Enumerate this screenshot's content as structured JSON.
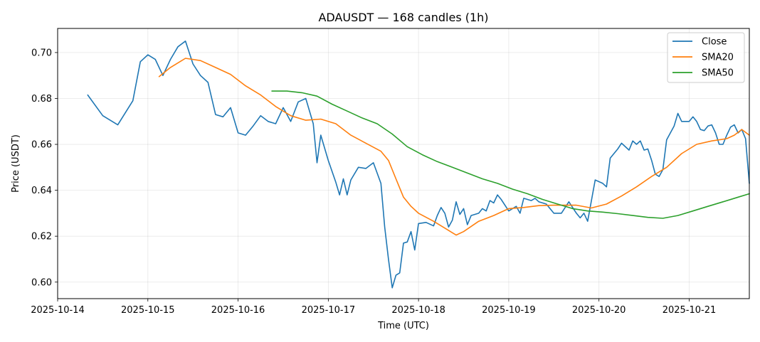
{
  "chart_data": {
    "type": "line",
    "title": "ADAUSDT — 168 candles (1h)",
    "xlabel": "Time (UTC)",
    "ylabel": "Price (USDT)",
    "x_ticks": [
      "2025-10-14",
      "2025-10-15",
      "2025-10-16",
      "2025-10-17",
      "2025-10-18",
      "2025-10-19",
      "2025-10-20",
      "2025-10-21"
    ],
    "y_ticks": [
      "0.60",
      "0.62",
      "0.64",
      "0.66",
      "0.68",
      "0.70"
    ],
    "x_range": [
      "2025-10-14 00:00",
      "2025-10-21 16:00"
    ],
    "ylim": [
      0.5928,
      0.7105
    ],
    "grid": true,
    "legend_position": "top-right",
    "series": [
      {
        "name": "Close",
        "color": "#1f77b4",
        "points": [
          [
            "2025-10-14 08:00",
            0.6815
          ],
          [
            "2025-10-14 12:00",
            0.6725
          ],
          [
            "2025-10-14 16:00",
            0.6685
          ],
          [
            "2025-10-14 20:00",
            0.679
          ],
          [
            "2025-10-14 22:00",
            0.696
          ],
          [
            "2025-10-15 00:00",
            0.699
          ],
          [
            "2025-10-15 02:00",
            0.697
          ],
          [
            "2025-10-15 04:00",
            0.69
          ],
          [
            "2025-10-15 06:00",
            0.697
          ],
          [
            "2025-10-15 08:00",
            0.7025
          ],
          [
            "2025-10-15 10:00",
            0.705
          ],
          [
            "2025-10-15 12:00",
            0.695
          ],
          [
            "2025-10-15 14:00",
            0.69
          ],
          [
            "2025-10-15 16:00",
            0.687
          ],
          [
            "2025-10-15 18:00",
            0.673
          ],
          [
            "2025-10-15 20:00",
            0.672
          ],
          [
            "2025-10-15 22:00",
            0.676
          ],
          [
            "2025-10-16 00:00",
            0.665
          ],
          [
            "2025-10-16 02:00",
            0.664
          ],
          [
            "2025-10-16 04:00",
            0.668
          ],
          [
            "2025-10-16 06:00",
            0.6725
          ],
          [
            "2025-10-16 08:00",
            0.67
          ],
          [
            "2025-10-16 10:00",
            0.669
          ],
          [
            "2025-10-16 12:00",
            0.676
          ],
          [
            "2025-10-16 14:00",
            0.67
          ],
          [
            "2025-10-16 16:00",
            0.6785
          ],
          [
            "2025-10-16 18:00",
            0.68
          ],
          [
            "2025-10-16 20:00",
            0.669
          ],
          [
            "2025-10-16 21:00",
            0.652
          ],
          [
            "2025-10-16 22:00",
            0.664
          ],
          [
            "2025-10-17 00:00",
            0.653
          ],
          [
            "2025-10-17 02:00",
            0.6435
          ],
          [
            "2025-10-17 03:00",
            0.638
          ],
          [
            "2025-10-17 04:00",
            0.645
          ],
          [
            "2025-10-17 05:00",
            0.638
          ],
          [
            "2025-10-17 06:00",
            0.6445
          ],
          [
            "2025-10-17 08:00",
            0.65
          ],
          [
            "2025-10-17 10:00",
            0.6495
          ],
          [
            "2025-10-17 12:00",
            0.652
          ],
          [
            "2025-10-17 14:00",
            0.643
          ],
          [
            "2025-10-17 15:00",
            0.624
          ],
          [
            "2025-10-17 16:00",
            0.61
          ],
          [
            "2025-10-17 17:00",
            0.5975
          ],
          [
            "2025-10-17 18:00",
            0.603
          ],
          [
            "2025-10-17 19:00",
            0.604
          ],
          [
            "2025-10-17 20:00",
            0.617
          ],
          [
            "2025-10-17 21:00",
            0.6175
          ],
          [
            "2025-10-17 22:00",
            0.622
          ],
          [
            "2025-10-17 23:00",
            0.614
          ],
          [
            "2025-10-18 00:00",
            0.6255
          ],
          [
            "2025-10-18 02:00",
            0.626
          ],
          [
            "2025-10-18 04:00",
            0.6245
          ],
          [
            "2025-10-18 05:00",
            0.629
          ],
          [
            "2025-10-18 06:00",
            0.6325
          ],
          [
            "2025-10-18 07:00",
            0.63
          ],
          [
            "2025-10-18 08:00",
            0.624
          ],
          [
            "2025-10-18 09:00",
            0.627
          ],
          [
            "2025-10-18 10:00",
            0.635
          ],
          [
            "2025-10-18 11:00",
            0.6295
          ],
          [
            "2025-10-18 12:00",
            0.632
          ],
          [
            "2025-10-18 13:00",
            0.625
          ],
          [
            "2025-10-18 14:00",
            0.629
          ],
          [
            "2025-10-18 16:00",
            0.63
          ],
          [
            "2025-10-18 17:00",
            0.632
          ],
          [
            "2025-10-18 18:00",
            0.631
          ],
          [
            "2025-10-18 19:00",
            0.6355
          ],
          [
            "2025-10-18 20:00",
            0.6345
          ],
          [
            "2025-10-18 21:00",
            0.638
          ],
          [
            "2025-10-18 22:00",
            0.636
          ],
          [
            "2025-10-19 00:00",
            0.631
          ],
          [
            "2025-10-19 02:00",
            0.633
          ],
          [
            "2025-10-19 03:00",
            0.63
          ],
          [
            "2025-10-19 04:00",
            0.6365
          ],
          [
            "2025-10-19 06:00",
            0.6355
          ],
          [
            "2025-10-19 07:00",
            0.6365
          ],
          [
            "2025-10-19 08:00",
            0.635
          ],
          [
            "2025-10-19 10:00",
            0.634
          ],
          [
            "2025-10-19 12:00",
            0.63
          ],
          [
            "2025-10-19 14:00",
            0.63
          ],
          [
            "2025-10-19 16:00",
            0.635
          ],
          [
            "2025-10-19 18:00",
            0.63
          ],
          [
            "2025-10-19 19:00",
            0.628
          ],
          [
            "2025-10-19 20:00",
            0.63
          ],
          [
            "2025-10-19 21:00",
            0.6265
          ],
          [
            "2025-10-19 22:00",
            0.6355
          ],
          [
            "2025-10-19 23:00",
            0.6445
          ],
          [
            "2025-10-20 01:00",
            0.643
          ],
          [
            "2025-10-20 02:00",
            0.6415
          ],
          [
            "2025-10-20 03:00",
            0.654
          ],
          [
            "2025-10-20 05:00",
            0.658
          ],
          [
            "2025-10-20 06:00",
            0.6605
          ],
          [
            "2025-10-20 08:00",
            0.6575
          ],
          [
            "2025-10-20 09:00",
            0.6615
          ],
          [
            "2025-10-20 10:00",
            0.66
          ],
          [
            "2025-10-20 11:00",
            0.6615
          ],
          [
            "2025-10-20 12:00",
            0.6575
          ],
          [
            "2025-10-20 13:00",
            0.658
          ],
          [
            "2025-10-20 14:00",
            0.653
          ],
          [
            "2025-10-20 15:00",
            0.647
          ],
          [
            "2025-10-20 16:00",
            0.646
          ],
          [
            "2025-10-20 17:00",
            0.649
          ],
          [
            "2025-10-20 18:00",
            0.662
          ],
          [
            "2025-10-20 20:00",
            0.668
          ],
          [
            "2025-10-20 21:00",
            0.6735
          ],
          [
            "2025-10-20 22:00",
            0.67
          ],
          [
            "2025-10-21 00:00",
            0.67
          ],
          [
            "2025-10-21 01:00",
            0.672
          ],
          [
            "2025-10-21 02:00",
            0.67
          ],
          [
            "2025-10-21 03:00",
            0.6665
          ],
          [
            "2025-10-21 04:00",
            0.666
          ],
          [
            "2025-10-21 05:00",
            0.668
          ],
          [
            "2025-10-21 06:00",
            0.6685
          ],
          [
            "2025-10-21 07:00",
            0.665
          ],
          [
            "2025-10-21 08:00",
            0.66
          ],
          [
            "2025-10-21 09:00",
            0.66
          ],
          [
            "2025-10-21 10:00",
            0.664
          ],
          [
            "2025-10-21 11:00",
            0.6675
          ],
          [
            "2025-10-21 12:00",
            0.6685
          ],
          [
            "2025-10-21 13:00",
            0.665
          ],
          [
            "2025-10-21 14:00",
            0.6665
          ],
          [
            "2025-10-21 15:00",
            0.6625
          ],
          [
            "2025-10-21 16:00",
            0.643
          ]
        ]
      },
      {
        "name": "SMA20",
        "color": "#ff7f0e",
        "points": [
          [
            "2025-10-15 03:00",
            0.6895
          ],
          [
            "2025-10-15 06:00",
            0.6935
          ],
          [
            "2025-10-15 10:00",
            0.6975
          ],
          [
            "2025-10-15 14:00",
            0.6965
          ],
          [
            "2025-10-15 18:00",
            0.6935
          ],
          [
            "2025-10-15 22:00",
            0.6905
          ],
          [
            "2025-10-16 02:00",
            0.6855
          ],
          [
            "2025-10-16 06:00",
            0.6815
          ],
          [
            "2025-10-16 10:00",
            0.6765
          ],
          [
            "2025-10-16 14:00",
            0.6725
          ],
          [
            "2025-10-16 18:00",
            0.6705
          ],
          [
            "2025-10-16 22:00",
            0.671
          ],
          [
            "2025-10-17 02:00",
            0.669
          ],
          [
            "2025-10-17 06:00",
            0.664
          ],
          [
            "2025-10-17 10:00",
            0.6605
          ],
          [
            "2025-10-17 14:00",
            0.657
          ],
          [
            "2025-10-17 16:00",
            0.653
          ],
          [
            "2025-10-17 18:00",
            0.645
          ],
          [
            "2025-10-17 20:00",
            0.637
          ],
          [
            "2025-10-17 22:00",
            0.633
          ],
          [
            "2025-10-18 00:00",
            0.63
          ],
          [
            "2025-10-18 04:00",
            0.6265
          ],
          [
            "2025-10-18 08:00",
            0.6225
          ],
          [
            "2025-10-18 10:00",
            0.6205
          ],
          [
            "2025-10-18 12:00",
            0.622
          ],
          [
            "2025-10-18 16:00",
            0.6265
          ],
          [
            "2025-10-18 20:00",
            0.629
          ],
          [
            "2025-10-19 00:00",
            0.632
          ],
          [
            "2025-10-19 04:00",
            0.6325
          ],
          [
            "2025-10-19 08:00",
            0.6333
          ],
          [
            "2025-10-19 12:00",
            0.6335
          ],
          [
            "2025-10-19 18:00",
            0.6335
          ],
          [
            "2025-10-19 22:00",
            0.6323
          ],
          [
            "2025-10-20 02:00",
            0.634
          ],
          [
            "2025-10-20 06:00",
            0.6375
          ],
          [
            "2025-10-20 10:00",
            0.6415
          ],
          [
            "2025-10-20 14:00",
            0.646
          ],
          [
            "2025-10-20 18:00",
            0.65
          ],
          [
            "2025-10-20 22:00",
            0.656
          ],
          [
            "2025-10-21 02:00",
            0.66
          ],
          [
            "2025-10-21 06:00",
            0.6615
          ],
          [
            "2025-10-21 10:00",
            0.6625
          ],
          [
            "2025-10-21 12:00",
            0.664
          ],
          [
            "2025-10-21 14:00",
            0.6665
          ],
          [
            "2025-10-21 16:00",
            0.664
          ]
        ]
      },
      {
        "name": "SMA50",
        "color": "#2ca02c",
        "points": [
          [
            "2025-10-16 09:00",
            0.6832
          ],
          [
            "2025-10-16 13:00",
            0.6832
          ],
          [
            "2025-10-16 17:00",
            0.6825
          ],
          [
            "2025-10-16 21:00",
            0.681
          ],
          [
            "2025-10-17 01:00",
            0.6775
          ],
          [
            "2025-10-17 05:00",
            0.6745
          ],
          [
            "2025-10-17 09:00",
            0.6715
          ],
          [
            "2025-10-17 13:00",
            0.669
          ],
          [
            "2025-10-17 17:00",
            0.6645
          ],
          [
            "2025-10-17 21:00",
            0.659
          ],
          [
            "2025-10-18 01:00",
            0.6555
          ],
          [
            "2025-10-18 05:00",
            0.6525
          ],
          [
            "2025-10-18 09:00",
            0.65
          ],
          [
            "2025-10-18 13:00",
            0.6475
          ],
          [
            "2025-10-18 17:00",
            0.645
          ],
          [
            "2025-10-18 21:00",
            0.643
          ],
          [
            "2025-10-19 01:00",
            0.6405
          ],
          [
            "2025-10-19 05:00",
            0.6385
          ],
          [
            "2025-10-19 09:00",
            0.636
          ],
          [
            "2025-10-19 13:00",
            0.634
          ],
          [
            "2025-10-19 17:00",
            0.632
          ],
          [
            "2025-10-19 21:00",
            0.631
          ],
          [
            "2025-10-20 01:00",
            0.6305
          ],
          [
            "2025-10-20 05:00",
            0.6298
          ],
          [
            "2025-10-20 09:00",
            0.629
          ],
          [
            "2025-10-20 13:00",
            0.6282
          ],
          [
            "2025-10-20 17:00",
            0.6278
          ],
          [
            "2025-10-20 21:00",
            0.629
          ],
          [
            "2025-10-21 01:00",
            0.631
          ],
          [
            "2025-10-21 05:00",
            0.633
          ],
          [
            "2025-10-21 09:00",
            0.635
          ],
          [
            "2025-10-21 13:00",
            0.637
          ],
          [
            "2025-10-21 16:00",
            0.6385
          ]
        ]
      }
    ]
  }
}
